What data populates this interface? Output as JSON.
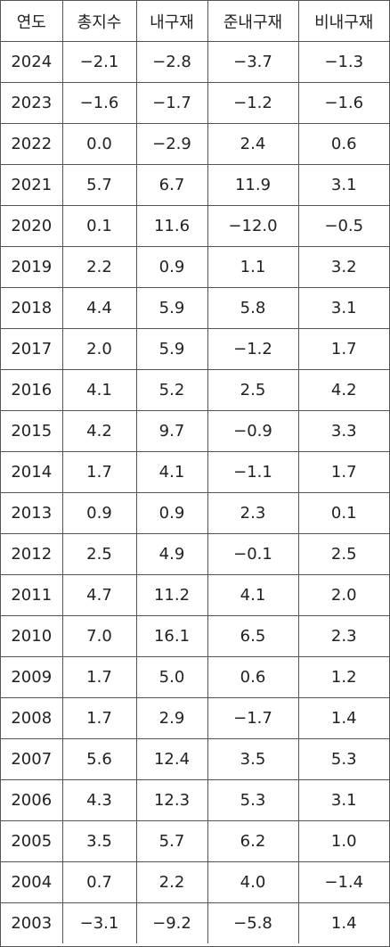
{
  "table": {
    "headers": [
      "연도",
      "총지수",
      "내구재",
      "준내구재",
      "비내구재"
    ],
    "rows": [
      [
        "2024",
        "−2.1",
        "−2.8",
        "−3.7",
        "−1.3"
      ],
      [
        "2023",
        "−1.6",
        "−1.7",
        "−1.2",
        "−1.6"
      ],
      [
        "2022",
        "0.0",
        "−2.9",
        "2.4",
        "0.6"
      ],
      [
        "2021",
        "5.7",
        "6.7",
        "11.9",
        "3.1"
      ],
      [
        "2020",
        "0.1",
        "11.6",
        "−12.0",
        "−0.5"
      ],
      [
        "2019",
        "2.2",
        "0.9",
        "1.1",
        "3.2"
      ],
      [
        "2018",
        "4.4",
        "5.9",
        "5.8",
        "3.1"
      ],
      [
        "2017",
        "2.0",
        "5.9",
        "−1.2",
        "1.7"
      ],
      [
        "2016",
        "4.1",
        "5.2",
        "2.5",
        "4.2"
      ],
      [
        "2015",
        "4.2",
        "9.7",
        "−0.9",
        "3.3"
      ],
      [
        "2014",
        "1.7",
        "4.1",
        "−1.1",
        "1.7"
      ],
      [
        "2013",
        "0.9",
        "0.9",
        "2.3",
        "0.1"
      ],
      [
        "2012",
        "2.5",
        "4.9",
        "−0.1",
        "2.5"
      ],
      [
        "2011",
        "4.7",
        "11.2",
        "4.1",
        "2.0"
      ],
      [
        "2010",
        "7.0",
        "16.1",
        "6.5",
        "2.3"
      ],
      [
        "2009",
        "1.7",
        "5.0",
        "0.6",
        "1.2"
      ],
      [
        "2008",
        "1.7",
        "2.9",
        "−1.7",
        "1.4"
      ],
      [
        "2007",
        "5.6",
        "12.4",
        "3.5",
        "5.3"
      ],
      [
        "2006",
        "4.3",
        "12.3",
        "5.3",
        "3.1"
      ],
      [
        "2005",
        "3.5",
        "5.7",
        "6.2",
        "1.0"
      ],
      [
        "2004",
        "0.7",
        "2.2",
        "4.0",
        "−1.4"
      ],
      [
        "2003",
        "−3.1",
        "−9.2",
        "−5.8",
        "1.4"
      ]
    ]
  }
}
